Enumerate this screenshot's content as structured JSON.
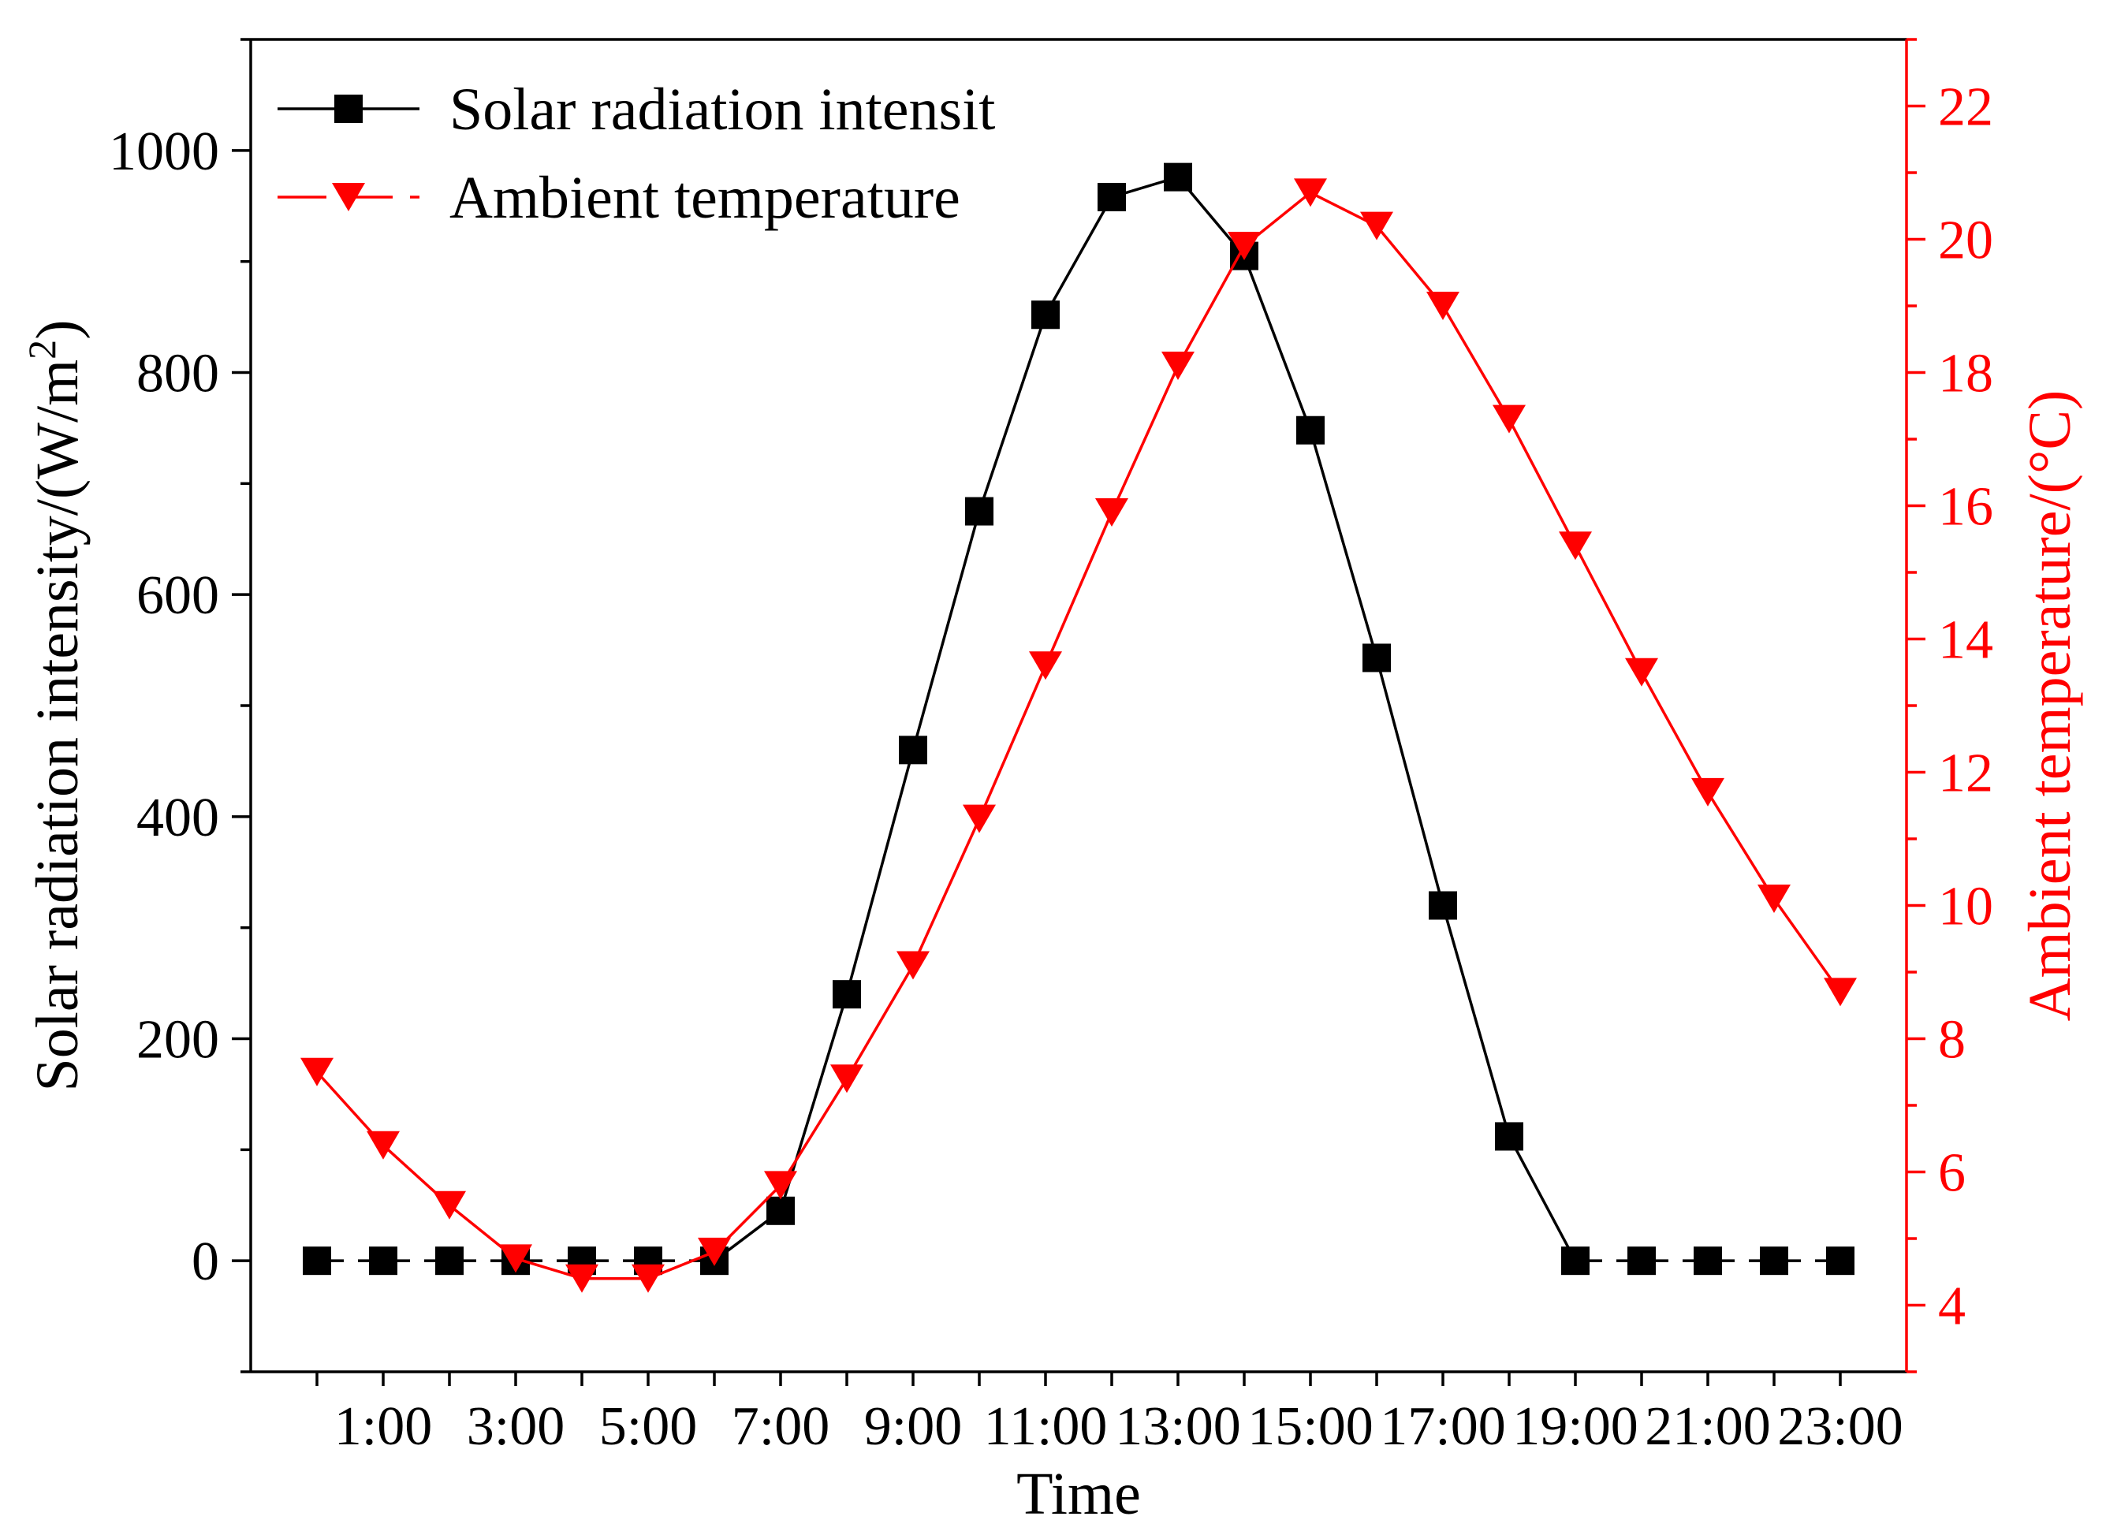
{
  "chart_data": {
    "type": "line",
    "xlabel": "Time",
    "ylabel": "Solar radiation intensity/(W/m",
    "ylabel_superscript": "2",
    "ylabel_close": ")",
    "y2label": "Ambient temperature/(°C)",
    "x": [
      0,
      1,
      2,
      3,
      4,
      5,
      6,
      7,
      8,
      9,
      10,
      11,
      12,
      13,
      14,
      15,
      16,
      17,
      18,
      19,
      20,
      21,
      22,
      23
    ],
    "xlim": [
      -1,
      24
    ],
    "x_ticks": [
      0,
      1,
      2,
      3,
      4,
      5,
      6,
      7,
      8,
      9,
      10,
      11,
      12,
      13,
      14,
      15,
      16,
      17,
      18,
      19,
      20,
      21,
      22,
      23
    ],
    "x_tick_labels": [
      {
        "x": 1,
        "label": "1:00"
      },
      {
        "x": 3,
        "label": "3:00"
      },
      {
        "x": 5,
        "label": "5:00"
      },
      {
        "x": 7,
        "label": "7:00"
      },
      {
        "x": 9,
        "label": "9:00"
      },
      {
        "x": 11,
        "label": "11:00"
      },
      {
        "x": 13,
        "label": "13:00"
      },
      {
        "x": 15,
        "label": "15:00"
      },
      {
        "x": 17,
        "label": "17:00"
      },
      {
        "x": 19,
        "label": "19:00"
      },
      {
        "x": 21,
        "label": "21:00"
      },
      {
        "x": 23,
        "label": "23:00"
      }
    ],
    "ylim": [
      -100,
      1100
    ],
    "y_ticks": [
      0,
      200,
      400,
      600,
      800,
      1000
    ],
    "y_minor_ticks": [
      -100,
      100,
      300,
      500,
      700,
      900,
      1100
    ],
    "y2lim": [
      3,
      23
    ],
    "y2_ticks": [
      4,
      6,
      8,
      10,
      12,
      14,
      16,
      18,
      20,
      22
    ],
    "y2_minor_ticks": [
      3,
      5,
      7,
      9,
      11,
      13,
      15,
      17,
      19,
      21,
      23
    ],
    "series": [
      {
        "name": "Solar radiation intensit",
        "axis": "left",
        "color": "#000000",
        "marker": "square",
        "dashed_runs": [
          [
            0,
            6
          ],
          [
            19,
            23
          ]
        ],
        "values": [
          0,
          0,
          0,
          0,
          0,
          0,
          0,
          45,
          240,
          460,
          675,
          852,
          958,
          976,
          905,
          748,
          543,
          320,
          112,
          0,
          0,
          0,
          0,
          0
        ]
      },
      {
        "name": "Ambient temperature",
        "axis": "right",
        "color": "#ff0000",
        "marker": "triangle-down",
        "dashed_runs": [],
        "values": [
          7.5,
          6.4,
          5.5,
          4.7,
          4.4,
          4.4,
          4.8,
          5.8,
          7.4,
          9.1,
          11.3,
          13.6,
          15.9,
          18.1,
          19.9,
          20.7,
          20.2,
          19.0,
          17.3,
          15.4,
          13.5,
          11.7,
          10.1,
          8.7
        ]
      }
    ],
    "legend_position": "top-left"
  }
}
